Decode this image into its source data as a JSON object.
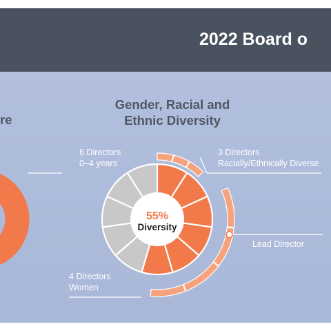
{
  "header": {
    "title": "2022 Board o"
  },
  "left_section": {
    "title_fragment": "re",
    "label_count": "6 Directors",
    "label_detail": "0–4 years"
  },
  "colors": {
    "orange": "#f2794a",
    "light_orange": "#f6a27c",
    "gray": "#c8c8c8",
    "header": "#4a5260",
    "white": "#ffffff"
  },
  "chart_data": [
    {
      "type": "pie",
      "title": "",
      "series": [
        {
          "values": [
            6
          ]
        }
      ]
    },
    {
      "type": "pie",
      "title": "Gender, Racial and Ethnic Diversity",
      "center_value": "55%",
      "center_label": "Diversity",
      "segments": 11,
      "diverse_segments": 6,
      "total_directors": 11,
      "annotations": [
        {
          "count": "3 Directors",
          "detail": "Racially/Ethnically Diverse"
        },
        {
          "count": "4 Directors",
          "detail": "Women"
        },
        {
          "count": "",
          "detail": "Lead Director"
        }
      ]
    }
  ]
}
